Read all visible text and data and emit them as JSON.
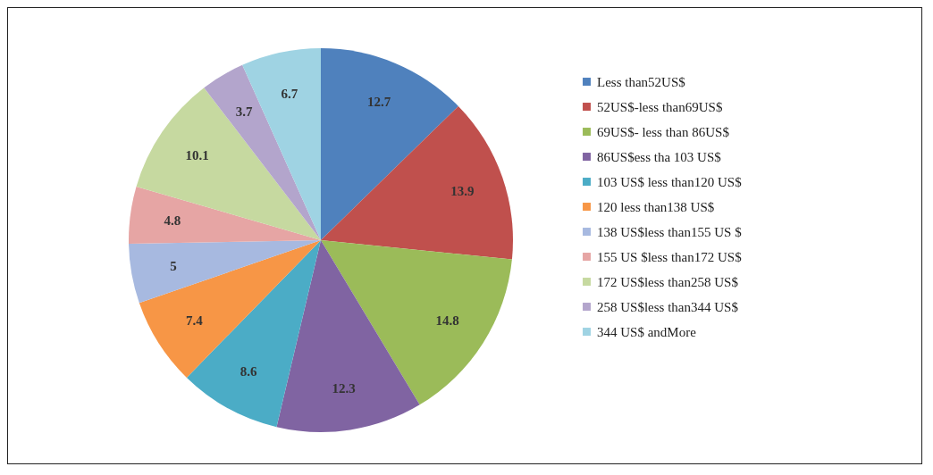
{
  "chart_data": {
    "type": "pie",
    "categories": [
      "Less than52US$",
      "52US$-less than69US$",
      "69US$- less than 86US$",
      "86US$ess tha 103 US$",
      "103 US$ less than120 US$",
      "120 less than138 US$",
      "138 US$less than155 US $",
      "155 US $less than172 US$",
      "172 US$less than258 US$",
      "258 US$less than344 US$",
      "344 US$ andMore"
    ],
    "values": [
      12.7,
      13.9,
      14.8,
      12.3,
      8.6,
      7.4,
      5,
      4.8,
      10.1,
      3.7,
      6.7
    ],
    "colors": [
      "#4f81bd",
      "#c0504d",
      "#9bbb59",
      "#8064a2",
      "#4bacc6",
      "#f79646",
      "#a7b9e0",
      "#e6a5a4",
      "#c6d9a0",
      "#b3a5cc",
      "#9fd3e3"
    ],
    "data_labels": true,
    "legend": "right"
  }
}
